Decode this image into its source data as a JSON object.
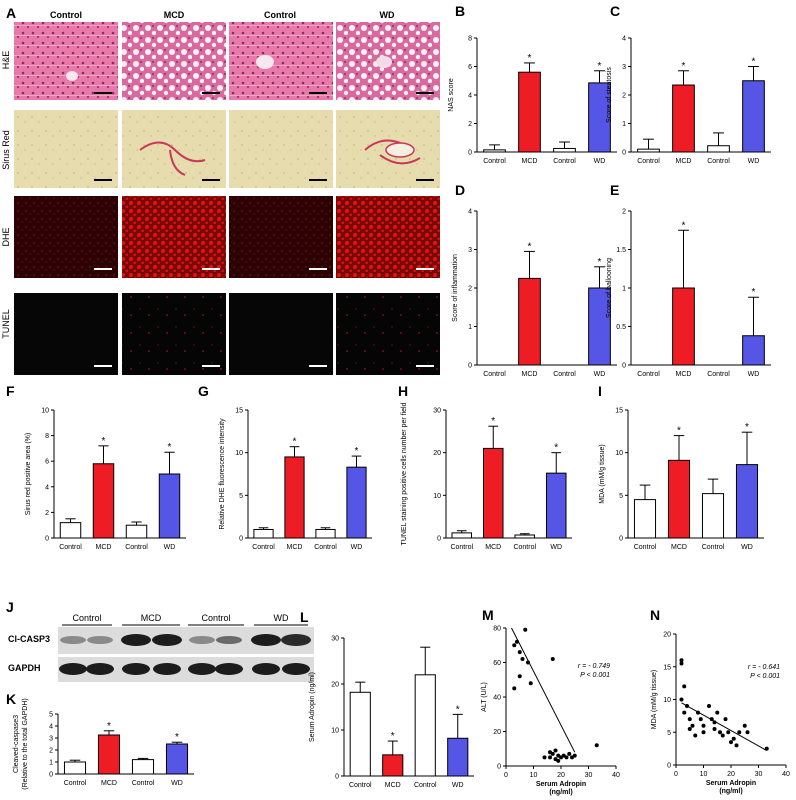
{
  "figure": {
    "panel_letters": [
      "A",
      "B",
      "C",
      "D",
      "E",
      "F",
      "G",
      "H",
      "I",
      "J",
      "K",
      "L",
      "M",
      "N"
    ],
    "micrograph_columns": [
      "Control",
      "MCD",
      "Control",
      "WD"
    ],
    "micrograph_rows": [
      "H&E",
      "Sirus Red",
      "DHE",
      "TUNEL"
    ],
    "western_blot": {
      "groups": [
        "Control",
        "MCD",
        "Control",
        "WD"
      ],
      "bands": [
        "Cl-CASP3",
        "GAPDH"
      ]
    },
    "colors": {
      "Control": "#ffffff",
      "MCD": "#ee1c24",
      "WD": "#5555e6"
    }
  },
  "chart_data": [
    {
      "panel": "B",
      "type": "bar",
      "categories": [
        "Control",
        "MCD",
        "Control",
        "WD"
      ],
      "values": [
        0.15,
        5.6,
        0.25,
        4.85
      ],
      "errors": [
        0.35,
        0.65,
        0.45,
        0.85
      ],
      "significant": [
        false,
        true,
        false,
        true
      ],
      "ylabel": "NAS score",
      "ylim": [
        0,
        8
      ],
      "yticks": [
        0,
        2,
        4,
        6,
        8
      ]
    },
    {
      "panel": "C",
      "type": "bar",
      "categories": [
        "Control",
        "MCD",
        "Control",
        "WD"
      ],
      "values": [
        0.1,
        2.35,
        0.22,
        2.5
      ],
      "errors": [
        0.35,
        0.5,
        0.45,
        0.5
      ],
      "significant": [
        false,
        true,
        false,
        true
      ],
      "ylabel": "Score of steatosis",
      "ylim": [
        0,
        4
      ],
      "yticks": [
        0,
        1,
        2,
        3,
        4
      ]
    },
    {
      "panel": "D",
      "type": "bar",
      "categories": [
        "Control",
        "MCD",
        "Control",
        "WD"
      ],
      "values": [
        0,
        2.25,
        0,
        2.0
      ],
      "errors": [
        0,
        0.7,
        0,
        0.55
      ],
      "significant": [
        false,
        true,
        false,
        true
      ],
      "ylabel": "Score of inflammation",
      "ylim": [
        0,
        4
      ],
      "yticks": [
        0,
        1,
        2,
        3,
        4
      ]
    },
    {
      "panel": "E",
      "type": "bar",
      "categories": [
        "Control",
        "MCD",
        "Control",
        "WD"
      ],
      "values": [
        0,
        1.0,
        0,
        0.38
      ],
      "errors": [
        0,
        0.75,
        0,
        0.5
      ],
      "significant": [
        false,
        true,
        false,
        true
      ],
      "ylabel": "Score of ballooning",
      "ylim": [
        0,
        2
      ],
      "yticks": [
        0,
        0.5,
        1.0,
        1.5,
        2.0
      ]
    },
    {
      "panel": "F",
      "type": "bar",
      "categories": [
        "Control",
        "MCD",
        "Control",
        "WD"
      ],
      "values": [
        1.2,
        5.8,
        1.0,
        5.0
      ],
      "errors": [
        0.3,
        1.4,
        0.25,
        1.7
      ],
      "significant": [
        false,
        true,
        false,
        true
      ],
      "ylabel": "Sirus red positive area (%)",
      "ylim": [
        0,
        10
      ],
      "yticks": [
        0,
        2,
        4,
        6,
        8,
        10
      ]
    },
    {
      "panel": "G",
      "type": "bar",
      "categories": [
        "Control",
        "MCD",
        "Control",
        "WD"
      ],
      "values": [
        1.0,
        9.5,
        1.0,
        8.3
      ],
      "errors": [
        0.2,
        1.2,
        0.2,
        1.3
      ],
      "significant": [
        false,
        true,
        false,
        true
      ],
      "ylabel": "Relative DHE fluorescence intensity",
      "ylim": [
        0,
        15
      ],
      "yticks": [
        0,
        5,
        10,
        15
      ]
    },
    {
      "panel": "H",
      "type": "bar",
      "categories": [
        "Control",
        "MCD",
        "Control",
        "WD"
      ],
      "values": [
        1.2,
        21,
        0.7,
        15.2
      ],
      "errors": [
        0.5,
        5.2,
        0.3,
        4.8
      ],
      "significant": [
        false,
        true,
        false,
        true
      ],
      "ylabel": "TUNEL staining positive cells number per field",
      "ylim": [
        0,
        30
      ],
      "yticks": [
        0,
        10,
        20,
        30
      ]
    },
    {
      "panel": "I",
      "type": "bar",
      "categories": [
        "Control",
        "MCD",
        "Control",
        "WD"
      ],
      "values": [
        4.5,
        9.1,
        5.2,
        8.6
      ],
      "errors": [
        1.7,
        2.9,
        1.7,
        3.8
      ],
      "significant": [
        false,
        true,
        false,
        true
      ],
      "ylabel": "MDA (mM/g tissue)",
      "ylim": [
        0,
        15
      ],
      "yticks": [
        0,
        5,
        10,
        15
      ]
    },
    {
      "panel": "K",
      "type": "bar",
      "categories": [
        "Control",
        "MCD",
        "Control",
        "WD"
      ],
      "values": [
        1.0,
        3.25,
        1.2,
        2.5
      ],
      "errors": [
        0.15,
        0.35,
        0.1,
        0.15
      ],
      "significant": [
        false,
        true,
        false,
        true
      ],
      "ylabel": "Cleaved-caspase3 (Relative to the total GAPDH)",
      "ylim": [
        0,
        5
      ],
      "yticks": [
        0,
        1,
        2,
        3,
        4,
        5
      ]
    },
    {
      "panel": "L",
      "type": "bar",
      "categories": [
        "Control",
        "MCD",
        "Control",
        "WD"
      ],
      "values": [
        18.2,
        4.6,
        22.0,
        8.2
      ],
      "errors": [
        2.2,
        3.0,
        6.0,
        5.2
      ],
      "significant": [
        false,
        true,
        false,
        true
      ],
      "ylabel": "Serum Adropin (ng/ml)",
      "ylim": [
        0,
        30
      ],
      "yticks": [
        0,
        10,
        20,
        30
      ]
    },
    {
      "panel": "M",
      "type": "scatter",
      "xlabel": "Serum Adropin (ng/ml)",
      "ylabel": "ALT (U/L)",
      "xlim": [
        0,
        40
      ],
      "ylim": [
        0,
        80
      ],
      "xticks": [
        0,
        10,
        20,
        30,
        40
      ],
      "yticks": [
        0,
        20,
        40,
        60,
        80
      ],
      "points": [
        [
          3,
          70
        ],
        [
          4,
          72
        ],
        [
          5,
          66
        ],
        [
          6,
          62
        ],
        [
          7,
          79
        ],
        [
          8,
          60
        ],
        [
          3,
          45
        ],
        [
          5,
          52
        ],
        [
          9,
          48
        ],
        [
          17,
          62
        ],
        [
          14,
          5
        ],
        [
          16,
          5
        ],
        [
          17,
          7
        ],
        [
          18,
          4
        ],
        [
          19,
          6
        ],
        [
          20,
          5
        ],
        [
          21,
          6
        ],
        [
          22,
          5
        ],
        [
          23,
          7
        ],
        [
          18,
          9
        ],
        [
          24,
          5
        ],
        [
          25,
          6
        ],
        [
          33,
          12
        ],
        [
          19,
          3
        ],
        [
          16,
          8
        ]
      ],
      "fit": [
        [
          2,
          80
        ],
        [
          25,
          8
        ]
      ],
      "annotation": [
        "r = - 0.749",
        "P < 0.001"
      ]
    },
    {
      "panel": "N",
      "type": "scatter",
      "xlabel": "Serum Adropin (ng/ml)",
      "ylabel": "MDA (mM/g tissue)",
      "xlim": [
        0,
        40
      ],
      "ylim": [
        0,
        20
      ],
      "xticks": [
        0,
        10,
        20,
        30,
        40
      ],
      "yticks": [
        0,
        5,
        10,
        15,
        20
      ],
      "points": [
        [
          2,
          15.5
        ],
        [
          2,
          16
        ],
        [
          3,
          12
        ],
        [
          2,
          10
        ],
        [
          3,
          8
        ],
        [
          4,
          9
        ],
        [
          5,
          7
        ],
        [
          5,
          5.5
        ],
        [
          6,
          6
        ],
        [
          7,
          4.5
        ],
        [
          8,
          8
        ],
        [
          9,
          7
        ],
        [
          10,
          6
        ],
        [
          12,
          9
        ],
        [
          13,
          7
        ],
        [
          14,
          6.5
        ],
        [
          15,
          8
        ],
        [
          16,
          5
        ],
        [
          17,
          4.5
        ],
        [
          18,
          7
        ],
        [
          19,
          5
        ],
        [
          20,
          3.5
        ],
        [
          21,
          4
        ],
        [
          22,
          3
        ],
        [
          23,
          5
        ],
        [
          25,
          6
        ],
        [
          26,
          5
        ],
        [
          33,
          2.5
        ],
        [
          10,
          5
        ],
        [
          14,
          5.5
        ]
      ],
      "fit": [
        [
          2,
          9.5
        ],
        [
          33,
          2.2
        ]
      ],
      "annotation": [
        "r = - 0.641",
        "P < 0.001"
      ]
    }
  ]
}
